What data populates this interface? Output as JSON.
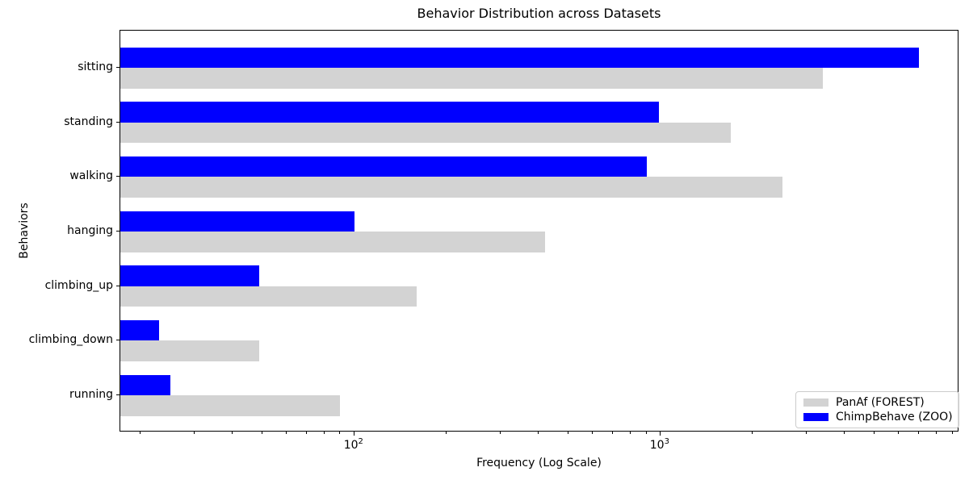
{
  "chart_data": {
    "type": "bar",
    "orientation": "horizontal",
    "title": "Behavior Distribution across Datasets",
    "xlabel": "Frequency (Log Scale)",
    "ylabel": "Behaviors",
    "xscale": "log",
    "xlim": [
      17.2,
      9470
    ],
    "grid": false,
    "legend_position": "lower right",
    "categories": [
      "sitting",
      "standing",
      "walking",
      "hanging",
      "climbing_up",
      "climbing_down",
      "running"
    ],
    "series": [
      {
        "name": "PanAf (FOREST)",
        "color": "#d3d3d3",
        "bar_position": "below",
        "values": [
          3400,
          1700,
          2500,
          420,
          160,
          49,
          90
        ]
      },
      {
        "name": "ChimpBehave (ZOO)",
        "color": "#0000ff",
        "bar_position": "above",
        "values": [
          7000,
          990,
          900,
          100,
          49,
          23,
          25
        ]
      }
    ],
    "x_major_ticks": [
      {
        "value": 100,
        "base": "10",
        "exp": "2"
      },
      {
        "value": 1000,
        "base": "10",
        "exp": "3"
      }
    ]
  },
  "colors": {
    "background": "#ffffff",
    "spine": "#000000",
    "text": "#000000",
    "legend_border": "#cccccc"
  }
}
